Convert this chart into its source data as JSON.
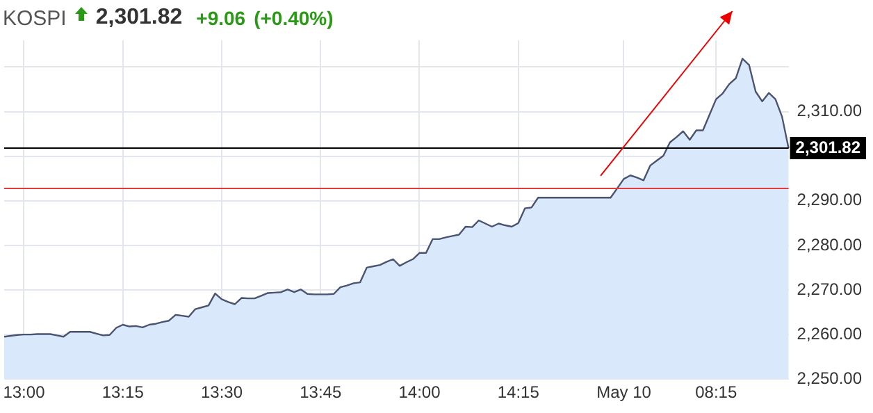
{
  "chart_data": {
    "type": "area",
    "title": "KOSPI",
    "annotations": [
      "2,301.82",
      "+9.06",
      "(+0.40%)"
    ],
    "categories": [
      null,
      null,
      null,
      "13:00",
      null,
      null,
      null,
      null,
      null,
      null,
      null,
      null,
      null,
      null,
      null,
      null,
      null,
      null,
      "13:15",
      null,
      null,
      null,
      null,
      null,
      null,
      null,
      null,
      null,
      null,
      null,
      null,
      null,
      null,
      "13:30",
      null,
      null,
      null,
      null,
      null,
      null,
      null,
      null,
      null,
      null,
      null,
      null,
      null,
      null,
      "13:45",
      null,
      null,
      null,
      null,
      null,
      null,
      null,
      null,
      null,
      null,
      null,
      null,
      null,
      null,
      "14:00",
      null,
      null,
      null,
      null,
      null,
      null,
      null,
      null,
      null,
      null,
      null,
      null,
      null,
      null,
      "14:15",
      null,
      null,
      null,
      null,
      null,
      null,
      null,
      null,
      null,
      null,
      null,
      null,
      null,
      null,
      null,
      "May 10",
      null,
      null,
      null,
      null,
      null,
      null,
      null,
      null,
      null,
      null,
      null,
      null,
      null,
      "08:15",
      null,
      null,
      null,
      null,
      null,
      null,
      null,
      null,
      null,
      null,
      null
    ],
    "series": [
      {
        "color": "#4a5470",
        "values": [
          2259.5,
          2259.7,
          2259.9,
          2260.0,
          2260.0,
          2260.1,
          2260.1,
          2260.1,
          2259.8,
          2259.5,
          2260.6,
          2260.6,
          2260.6,
          2260.6,
          2260.2,
          2259.8,
          2259.9,
          2261.5,
          2262.2,
          2261.8,
          2261.9,
          2261.6,
          2262.2,
          2262.4,
          2262.8,
          2263.1,
          2264.4,
          2264.2,
          2264.0,
          2265.7,
          2266.1,
          2266.5,
          2269.2,
          2267.9,
          2267.3,
          2266.8,
          2268.2,
          2268.1,
          2268.1,
          2268.7,
          2269.3,
          2269.4,
          2269.5,
          2270.1,
          2269.5,
          2270.1,
          2269.1,
          2269.0,
          2269.0,
          2269.0,
          2269.1,
          2270.6,
          2271.0,
          2271.5,
          2271.7,
          2275.0,
          2275.3,
          2275.6,
          2276.3,
          2276.9,
          2275.4,
          2276.2,
          2276.9,
          2278.3,
          2278.3,
          2281.4,
          2281.4,
          2281.8,
          2282.1,
          2282.4,
          2284.2,
          2284.1,
          2285.6,
          2284.9,
          2284.2,
          2284.9,
          2284.5,
          2284.2,
          2285.0,
          2288.3,
          2288.5,
          2290.7,
          2290.7,
          2290.7,
          2290.7,
          2290.7,
          2290.7,
          2290.7,
          2290.7,
          2290.7,
          2290.7,
          2290.7,
          2290.7,
          2292.8,
          2294.9,
          2295.7,
          2295.2,
          2294.6,
          2297.9,
          2299.0,
          2300.1,
          2303.1,
          2304.3,
          2305.6,
          2303.7,
          2305.8,
          2305.8,
          2309.3,
          2312.8,
          2314.1,
          2316.2,
          2317.5,
          2321.9,
          2320.5,
          2314.5,
          2312.3,
          2314.2,
          2312.8,
          2308.9,
          2301.8
        ]
      }
    ],
    "ylim": [
      2250,
      2326
    ],
    "yticks": [
      {
        "value": 2250,
        "label": "2,250.00"
      },
      {
        "value": 2260,
        "label": "2,260.00"
      },
      {
        "value": 2270,
        "label": "2,270.00"
      },
      {
        "value": 2280,
        "label": "2,280.00"
      },
      {
        "value": 2290,
        "label": "2,290.00"
      },
      {
        "value": 2300,
        "label": null
      },
      {
        "value": 2310,
        "label": "2,310.00"
      },
      {
        "value": 2320,
        "label": null
      }
    ],
    "ref_lines": [
      {
        "axis": "y",
        "value": 2301.82,
        "label": "2,301.82",
        "color": "#000000"
      },
      {
        "axis": "y",
        "value": 2292.76,
        "color": "#e03c3c"
      }
    ],
    "grid": true,
    "legend": false,
    "marker": "none"
  }
}
